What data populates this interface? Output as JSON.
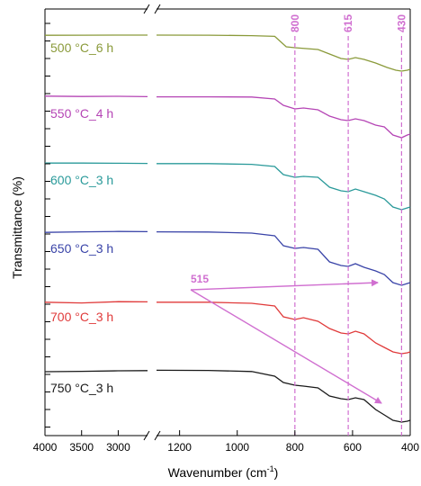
{
  "chart_data": {
    "type": "line",
    "title": "",
    "xlabel": "Wavenumber (cm",
    "xlabel_sup": "-1",
    "xlabel_close": ")",
    "ylabel": "Transmittance (%)",
    "x_axis_broken": true,
    "x_ranges": [
      [
        4000,
        2600
      ],
      [
        1280,
        400
      ]
    ],
    "x_ticks_left": [
      4000,
      3500,
      3000
    ],
    "x_ticks_right": [
      1200,
      1000,
      800,
      600,
      400
    ],
    "y_tick_labels": "none",
    "grid": false,
    "reference_lines": [
      {
        "x": 800,
        "label": "800",
        "color": "#d06fd0"
      },
      {
        "x": 615,
        "label": "615",
        "color": "#d06fd0"
      },
      {
        "x": 430,
        "label": "430",
        "color": "#d06fd0"
      }
    ],
    "annotation": {
      "label": "515",
      "color": "#d06fd0"
    },
    "series": [
      {
        "name": "500 °C_6 h",
        "color": "#8a9a3a",
        "points": [
          [
            4000,
            0.9
          ],
          [
            3500,
            0.95
          ],
          [
            3000,
            1.0
          ],
          [
            2600,
            1.0
          ],
          [
            1280,
            1.0
          ],
          [
            1100,
            0.95
          ],
          [
            950,
            0.7
          ],
          [
            870,
            0.3
          ],
          [
            830,
            -5.5
          ],
          [
            800,
            -6.0
          ],
          [
            760,
            -6.5
          ],
          [
            720,
            -7.0
          ],
          [
            680,
            -9.5
          ],
          [
            640,
            -12.0
          ],
          [
            615,
            -12.5
          ],
          [
            590,
            -11.5
          ],
          [
            560,
            -12.5
          ],
          [
            520,
            -14.5
          ],
          [
            480,
            -17.0
          ],
          [
            450,
            -18.5
          ],
          [
            430,
            -19.0
          ],
          [
            410,
            -18.5
          ],
          [
            400,
            -18.0
          ]
        ]
      },
      {
        "name": "550 °C_4 h",
        "color": "#b545b5",
        "points": [
          [
            4000,
            0.6
          ],
          [
            3500,
            0.4
          ],
          [
            3000,
            0.5
          ],
          [
            2600,
            0.3
          ],
          [
            1280,
            0.2
          ],
          [
            1100,
            0.2
          ],
          [
            950,
            0.1
          ],
          [
            870,
            -1.0
          ],
          [
            840,
            -4.5
          ],
          [
            800,
            -6.5
          ],
          [
            770,
            -6.0
          ],
          [
            720,
            -7.0
          ],
          [
            680,
            -10.5
          ],
          [
            640,
            -12.5
          ],
          [
            615,
            -13.0
          ],
          [
            590,
            -12.0
          ],
          [
            560,
            -13.0
          ],
          [
            520,
            -15.5
          ],
          [
            490,
            -16.5
          ],
          [
            460,
            -21.0
          ],
          [
            430,
            -22.5
          ],
          [
            410,
            -21.0
          ],
          [
            400,
            -20.5
          ]
        ]
      },
      {
        "name": "600 °C_3 h",
        "color": "#2a9a9a",
        "points": [
          [
            4000,
            0.4
          ],
          [
            3500,
            0.4
          ],
          [
            3000,
            0.3
          ],
          [
            2600,
            0.2
          ],
          [
            1280,
            0.1
          ],
          [
            1100,
            0.1
          ],
          [
            950,
            -0.3
          ],
          [
            870,
            -1.5
          ],
          [
            840,
            -6.0
          ],
          [
            800,
            -7.5
          ],
          [
            770,
            -7.0
          ],
          [
            720,
            -7.5
          ],
          [
            680,
            -13.0
          ],
          [
            640,
            -15.0
          ],
          [
            615,
            -15.5
          ],
          [
            590,
            -14.0
          ],
          [
            560,
            -15.5
          ],
          [
            520,
            -17.5
          ],
          [
            490,
            -19.5
          ],
          [
            460,
            -24.0
          ],
          [
            430,
            -25.5
          ],
          [
            410,
            -24.5
          ],
          [
            400,
            -24.0
          ]
        ]
      },
      {
        "name": "650 °C_3 h",
        "color": "#3a44a8",
        "points": [
          [
            4000,
            -0.1
          ],
          [
            3500,
            0.2
          ],
          [
            3000,
            0.4
          ],
          [
            2600,
            0.3
          ],
          [
            1280,
            0.2
          ],
          [
            1100,
            0.1
          ],
          [
            950,
            -0.5
          ],
          [
            870,
            -2.0
          ],
          [
            840,
            -7.5
          ],
          [
            800,
            -9.0
          ],
          [
            770,
            -8.5
          ],
          [
            720,
            -9.5
          ],
          [
            680,
            -16.5
          ],
          [
            640,
            -18.5
          ],
          [
            615,
            -19.0
          ],
          [
            590,
            -17.5
          ],
          [
            560,
            -19.5
          ],
          [
            520,
            -21.5
          ],
          [
            490,
            -23.5
          ],
          [
            460,
            -28.0
          ],
          [
            430,
            -29.5
          ],
          [
            410,
            -28.5
          ],
          [
            400,
            -28.0
          ]
        ]
      },
      {
        "name": "700 °C_3 h",
        "color": "#e03a3a",
        "points": [
          [
            4000,
            0.1
          ],
          [
            3500,
            -0.3
          ],
          [
            3000,
            0.4
          ],
          [
            2600,
            0.3
          ],
          [
            1280,
            0.1
          ],
          [
            1100,
            0.1
          ],
          [
            950,
            -0.5
          ],
          [
            870,
            -2.0
          ],
          [
            840,
            -8.0
          ],
          [
            800,
            -9.5
          ],
          [
            770,
            -8.5
          ],
          [
            720,
            -10.5
          ],
          [
            680,
            -14.5
          ],
          [
            640,
            -17.0
          ],
          [
            615,
            -17.5
          ],
          [
            590,
            -16.0
          ],
          [
            560,
            -17.5
          ],
          [
            520,
            -22.5
          ],
          [
            490,
            -25.0
          ],
          [
            460,
            -27.5
          ],
          [
            430,
            -28.5
          ],
          [
            410,
            -28.0
          ],
          [
            400,
            -27.5
          ]
        ]
      },
      {
        "name": "750 °C_3 h",
        "color": "#1a1a1a",
        "points": [
          [
            4000,
            -0.5
          ],
          [
            3500,
            -0.3
          ],
          [
            3000,
            0.0
          ],
          [
            2600,
            0.1
          ],
          [
            1280,
            0.3
          ],
          [
            1100,
            0.2
          ],
          [
            950,
            -0.4
          ],
          [
            870,
            -3.0
          ],
          [
            840,
            -6.5
          ],
          [
            800,
            -8.0
          ],
          [
            770,
            -8.5
          ],
          [
            720,
            -9.5
          ],
          [
            680,
            -14.0
          ],
          [
            640,
            -15.5
          ],
          [
            615,
            -16.0
          ],
          [
            590,
            -15.0
          ],
          [
            560,
            -16.0
          ],
          [
            520,
            -21.5
          ],
          [
            490,
            -24.5
          ],
          [
            460,
            -27.5
          ],
          [
            430,
            -28.5
          ],
          [
            410,
            -28.0
          ],
          [
            400,
            -27.5
          ]
        ]
      }
    ]
  }
}
